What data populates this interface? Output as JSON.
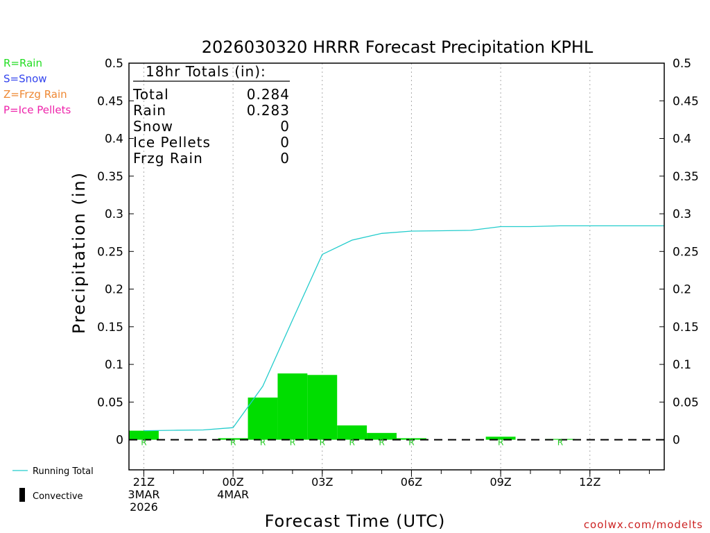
{
  "title": "2026030320 HRRR Forecast Precipitation KPHL",
  "legend_types": [
    {
      "label": "R=Rain",
      "color": "#22dd22"
    },
    {
      "label": "S=Snow",
      "color": "#3344ee"
    },
    {
      "label": "Z=Frzg Rain",
      "color": "#ee8833"
    },
    {
      "label": "P=Ice Pellets",
      "color": "#ee22aa"
    }
  ],
  "legend_bottom": {
    "running_total": "Running Total",
    "convective": "Convective"
  },
  "totals": {
    "header": "18hr Totals (in):",
    "rows": [
      {
        "label": "Total",
        "value": "0.284"
      },
      {
        "label": "Rain",
        "value": "0.283"
      },
      {
        "label": "Snow",
        "value": "0"
      },
      {
        "label": "Ice Pellets",
        "value": "0"
      },
      {
        "label": "Frzg Rain",
        "value": "0"
      }
    ]
  },
  "credit": "coolwx.com/modelts",
  "colors": {
    "bars": "#00dd00",
    "running_total": "#22cccc",
    "type_marker": "#22cc22",
    "credit": "#cc2222"
  },
  "chart_data": {
    "type": "bar",
    "title": "2026030320 HRRR Forecast Precipitation KPHL",
    "xlabel": "Forecast Time (UTC)",
    "ylabel": "Precipitation (in)",
    "ylim": [
      -0.04,
      0.5
    ],
    "xlim": [
      -0.5,
      17.5
    ],
    "yticks": [
      "0",
      "0.05",
      "0.1",
      "0.15",
      "0.2",
      "0.25",
      "0.3",
      "0.35",
      "0.4",
      "0.45",
      "0.5"
    ],
    "xticks": [
      {
        "hour": 0,
        "lines": [
          "21Z",
          "3MAR",
          "2026"
        ]
      },
      {
        "hour": 3,
        "lines": [
          "00Z",
          "4MAR"
        ]
      },
      {
        "hour": 6,
        "lines": [
          "03Z"
        ]
      },
      {
        "hour": 9,
        "lines": [
          "06Z"
        ]
      },
      {
        "hour": 12,
        "lines": [
          "09Z"
        ]
      },
      {
        "hour": 15,
        "lines": [
          "12Z"
        ]
      }
    ],
    "grid": "vertical dotted at labeled hours",
    "hours": [
      0,
      1,
      2,
      3,
      4,
      5,
      6,
      7,
      8,
      9,
      10,
      11,
      12,
      13,
      14,
      15,
      16,
      17
    ],
    "hourly_precip": [
      0.012,
      0,
      0,
      0.002,
      0.056,
      0.088,
      0.086,
      0.019,
      0.009,
      0.002,
      0,
      0,
      0.004,
      0,
      0.001,
      0,
      0,
      0
    ],
    "running_total": [
      0.012,
      0.0125,
      0.013,
      0.016,
      0.071,
      0.159,
      0.246,
      0.265,
      0.274,
      0.277,
      0.2775,
      0.278,
      0.283,
      0.283,
      0.284,
      0.284,
      0.284,
      0.284
    ],
    "precip_type_labels": [
      "R",
      "",
      "",
      "R",
      "R",
      "R",
      "R",
      "R",
      "R",
      "R",
      "",
      "",
      "R",
      "",
      "R",
      "",
      "",
      ""
    ],
    "series": [
      {
        "name": "Running Total",
        "type": "line",
        "values": [
          0.012,
          0.0125,
          0.013,
          0.016,
          0.071,
          0.159,
          0.246,
          0.265,
          0.274,
          0.277,
          0.2775,
          0.278,
          0.283,
          0.283,
          0.284,
          0.284,
          0.284,
          0.284
        ]
      }
    ]
  }
}
